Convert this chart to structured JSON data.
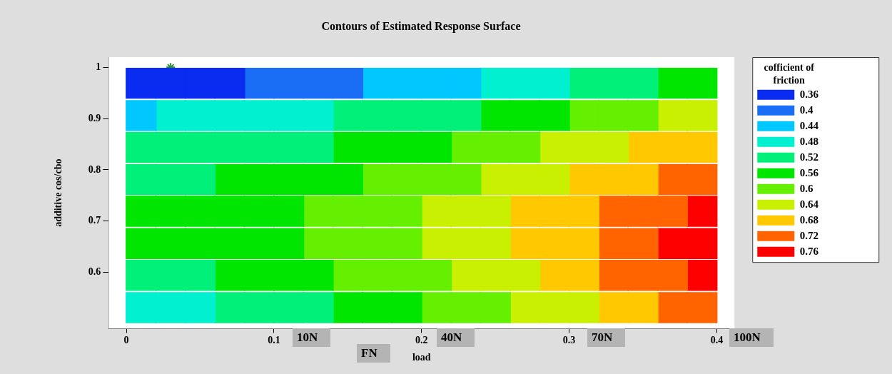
{
  "chart_data": {
    "type": "scatter",
    "title": "Contours of Estimated Response Surface",
    "xlabel": "load",
    "ylabel": "additive cos/cbo",
    "legend_title": "cofficient of friction",
    "legend": "right",
    "marker": "square",
    "xlim": [
      -0.012,
      0.412
    ],
    "ylim": [
      0.49,
      1.02
    ],
    "xticks": [
      0,
      0.1,
      0.2,
      0.3,
      0.4
    ],
    "yticks": [
      0.6,
      0.7,
      0.8,
      0.9,
      1
    ],
    "series": [
      {
        "name": "0.36",
        "color": "#0a2cf0",
        "x": [
          0.01,
          0.03,
          0.05,
          0.07
        ],
        "values": [
          0.969,
          0.969,
          0.969,
          0.969
        ]
      },
      {
        "name": "0.4",
        "color": "#1a6ef5",
        "x": [
          0.09,
          0.11,
          0.13,
          0.15
        ],
        "values": [
          0.969,
          0.969,
          0.969,
          0.969
        ]
      },
      {
        "name": "0.44",
        "color": "#00c8ff",
        "x": [
          0.17,
          0.19,
          0.21,
          0.23,
          0.01
        ],
        "values": [
          0.969,
          0.969,
          0.969,
          0.969,
          0.906
        ]
      },
      {
        "name": "0.48",
        "color": "#00f0d0",
        "x": [
          0.25,
          0.27,
          0.29,
          0.03,
          0.05,
          0.07,
          0.09,
          0.11,
          0.13,
          0.01,
          0.03,
          0.05
        ],
        "values": [
          0.969,
          0.969,
          0.969,
          0.906,
          0.906,
          0.906,
          0.906,
          0.906,
          0.906,
          0.531,
          0.531,
          0.531
        ]
      },
      {
        "name": "0.52",
        "color": "#00f07a",
        "x": [
          0.31,
          0.33,
          0.35,
          0.15,
          0.17,
          0.19,
          0.21,
          0.23,
          0.01,
          0.03,
          0.05,
          0.07,
          0.09,
          0.11,
          0.13,
          0.01,
          0.03,
          0.05,
          0.01,
          0.03,
          0.05,
          0.07,
          0.09,
          0.11,
          0.13
        ],
        "values": [
          0.969,
          0.969,
          0.969,
          0.906,
          0.906,
          0.906,
          0.906,
          0.906,
          0.844,
          0.844,
          0.844,
          0.844,
          0.844,
          0.844,
          0.844,
          0.781,
          0.781,
          0.781,
          0.594,
          0.594,
          0.594,
          0.531,
          0.531,
          0.531,
          0.531
        ]
      },
      {
        "name": "0.56",
        "color": "#00e600",
        "x": [
          0.37,
          0.39,
          0.25,
          0.27,
          0.29,
          0.15,
          0.17,
          0.19,
          0.21,
          0.07,
          0.09,
          0.11,
          0.13,
          0.15,
          0.01,
          0.03,
          0.05,
          0.07,
          0.09,
          0.11,
          0.01,
          0.03,
          0.05,
          0.07,
          0.09,
          0.11,
          0.07,
          0.09,
          0.11,
          0.13,
          0.15,
          0.17,
          0.19
        ],
        "values": [
          0.969,
          0.969,
          0.906,
          0.906,
          0.906,
          0.844,
          0.844,
          0.844,
          0.844,
          0.781,
          0.781,
          0.781,
          0.781,
          0.781,
          0.719,
          0.719,
          0.719,
          0.719,
          0.719,
          0.719,
          0.656,
          0.656,
          0.656,
          0.656,
          0.656,
          0.656,
          0.594,
          0.594,
          0.594,
          0.594,
          0.531,
          0.531,
          0.531
        ]
      },
      {
        "name": "0.6",
        "color": "#64f000",
        "x": [
          0.31,
          0.33,
          0.35,
          0.23,
          0.25,
          0.27,
          0.17,
          0.19,
          0.21,
          0.23,
          0.13,
          0.15,
          0.17,
          0.19,
          0.13,
          0.15,
          0.17,
          0.19,
          0.15,
          0.17,
          0.19,
          0.21,
          0.21,
          0.23,
          0.25
        ],
        "values": [
          0.906,
          0.906,
          0.906,
          0.844,
          0.844,
          0.844,
          0.781,
          0.781,
          0.781,
          0.781,
          0.719,
          0.719,
          0.719,
          0.719,
          0.656,
          0.656,
          0.656,
          0.656,
          0.594,
          0.594,
          0.594,
          0.594,
          0.531,
          0.531,
          0.531
        ]
      },
      {
        "name": "0.64",
        "color": "#c8f000",
        "x": [
          0.37,
          0.39,
          0.29,
          0.31,
          0.33,
          0.25,
          0.27,
          0.29,
          0.21,
          0.23,
          0.25,
          0.21,
          0.23,
          0.25,
          0.23,
          0.25,
          0.27,
          0.27,
          0.29,
          0.31
        ],
        "values": [
          0.906,
          0.906,
          0.844,
          0.844,
          0.844,
          0.781,
          0.781,
          0.781,
          0.719,
          0.719,
          0.719,
          0.656,
          0.656,
          0.656,
          0.594,
          0.594,
          0.594,
          0.531,
          0.531,
          0.531
        ]
      },
      {
        "name": "0.68",
        "color": "#ffc800",
        "x": [
          0.35,
          0.37,
          0.39,
          0.31,
          0.33,
          0.35,
          0.27,
          0.29,
          0.31,
          0.27,
          0.29,
          0.31,
          0.29,
          0.31,
          0.33,
          0.35
        ],
        "values": [
          0.844,
          0.844,
          0.844,
          0.781,
          0.781,
          0.781,
          0.719,
          0.719,
          0.719,
          0.656,
          0.656,
          0.656,
          0.594,
          0.594,
          0.531,
          0.531
        ]
      },
      {
        "name": "0.72",
        "color": "#ff6400",
        "x": [
          0.37,
          0.39,
          0.33,
          0.35,
          0.37,
          0.33,
          0.35,
          0.33,
          0.35,
          0.37,
          0.37,
          0.39
        ],
        "values": [
          0.781,
          0.781,
          0.719,
          0.719,
          0.719,
          0.656,
          0.656,
          0.594,
          0.594,
          0.594,
          0.531,
          0.531
        ]
      },
      {
        "name": "0.76",
        "color": "#ff0000",
        "x": [
          0.39,
          0.37,
          0.39,
          0.39
        ],
        "values": [
          0.719,
          0.656,
          0.656,
          0.594
        ]
      },
      {
        "marker": "cross",
        "color": "#2e8b2e",
        "x": [
          0.03
        ],
        "values": [
          1.0
        ]
      }
    ],
    "annotations": [
      "10N",
      "FN",
      "40N",
      "70N",
      "100N"
    ]
  }
}
